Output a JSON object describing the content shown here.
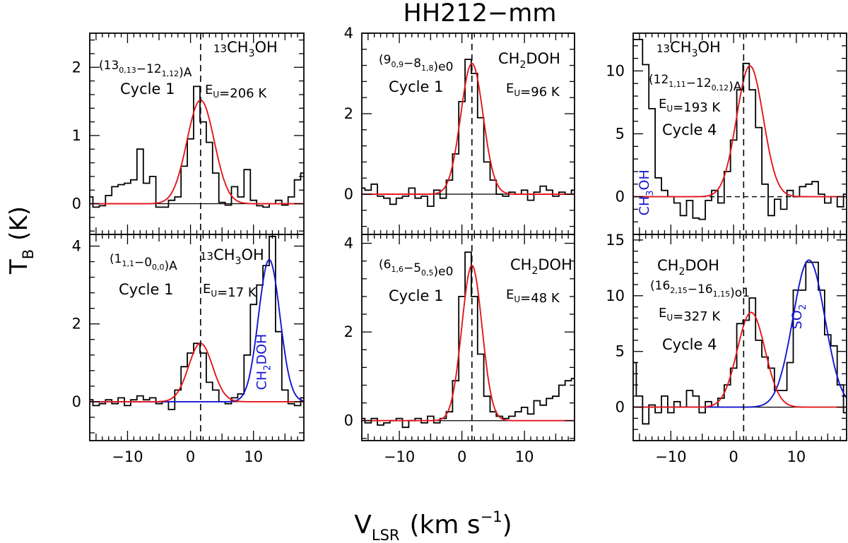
{
  "chart_data": {
    "type": "line",
    "title": "HH212−mm",
    "xlabel": "V",
    "xlabel_sub": "LSR",
    "xlabel_unit": "(km s",
    "xlabel_unit_sup": "−1",
    "xlabel_close": ")",
    "ylabel": "T",
    "ylabel_sub": "B",
    "ylabel_unit": "(K)",
    "xlim": [
      -16,
      18
    ],
    "x_ticks": [
      -10,
      0,
      10
    ],
    "x_tick_labels": [
      "−10",
      "0",
      "10"
    ],
    "line_velocity": 1.6,
    "panels": [
      {
        "id": "p1",
        "molecule_pre": "13",
        "molecule": "CH3OH",
        "transition": "(13_{0,13}−12_{1,12})A",
        "cycle": "Cycle 1",
        "eu": "E_{U}=206 K",
        "ylim": [
          -0.45,
          2.5
        ],
        "yticks": [
          0,
          1,
          2
        ],
        "observed": {
          "x": [
            -16,
            -15,
            -14,
            -13,
            -12,
            -11,
            -10,
            -9,
            -8,
            -7,
            -6,
            -5,
            -4,
            -3,
            -2,
            -1,
            0,
            1,
            2,
            3,
            4,
            5,
            6,
            7,
            8,
            9,
            10,
            11,
            12,
            13,
            14,
            15,
            16,
            17,
            18
          ],
          "y": [
            0.1,
            -0.05,
            -0.03,
            0.12,
            0.25,
            0.28,
            0.3,
            0.35,
            0.8,
            0.3,
            0.4,
            -0.05,
            -0.05,
            0.05,
            0.1,
            0.55,
            0.95,
            1.72,
            1.2,
            0.9,
            0.45,
            0.02,
            -0.02,
            0.25,
            0.1,
            0.5,
            0.05,
            -0.03,
            -0.05,
            0.0,
            0.05,
            -0.02,
            0.1,
            0.35,
            0.45
          ]
        },
        "fits": [
          {
            "color": "#e3171c",
            "amp": 1.52,
            "center": 1.6,
            "fwhm": 5.1
          }
        ],
        "annotations": [],
        "hline_dash": false
      },
      {
        "id": "p2",
        "molecule_pre": "",
        "molecule": "CH2DOH",
        "transition": "(9_{0,9}−8_{1,8})e0",
        "cycle": "Cycle 1",
        "eu": "E_{U}=96 K",
        "ylim": [
          -1.0,
          4.0
        ],
        "yticks": [
          0,
          2,
          4
        ],
        "observed": {
          "x": [
            -16,
            -15,
            -14,
            -13,
            -12,
            -11,
            -10,
            -9,
            -8,
            -7,
            -6,
            -5,
            -4,
            -3,
            -2,
            -1,
            0,
            1,
            2,
            3,
            4,
            5,
            6,
            7,
            8,
            9,
            10,
            11,
            12,
            13,
            14,
            15,
            16,
            17,
            18
          ],
          "y": [
            0.15,
            0.1,
            0.25,
            -0.05,
            -0.1,
            -0.25,
            -0.1,
            -0.05,
            0.15,
            -0.1,
            -0.05,
            -0.3,
            0.1,
            -0.1,
            0.35,
            1.0,
            2.3,
            3.35,
            3.0,
            1.9,
            0.8,
            0.35,
            0.0,
            -0.05,
            0.05,
            0.0,
            0.1,
            -0.15,
            0.05,
            0.2,
            0.1,
            -0.05,
            0.05,
            0.0,
            0.1
          ]
        },
        "fits": [
          {
            "color": "#e3171c",
            "amp": 3.25,
            "center": 1.6,
            "fwhm": 4.2
          }
        ],
        "annotations": [],
        "hline_dash": false
      },
      {
        "id": "p3",
        "molecule_pre": "13",
        "molecule": "CH3OH",
        "transition": "(12_{1,11}−12_{0,12})A",
        "cycle": "Cycle 4",
        "eu": "E_{U}=193 K",
        "ylim": [
          -3.0,
          13.0
        ],
        "yticks": [
          0,
          5,
          10
        ],
        "observed": {
          "x": [
            -16,
            -15,
            -14,
            -13,
            -12,
            -11,
            -10,
            -9,
            -8,
            -7,
            -6,
            -5,
            -4,
            -3,
            -2,
            -1,
            0,
            1,
            2,
            3,
            4,
            5,
            6,
            7,
            8,
            9,
            10,
            11,
            12,
            13,
            14,
            15,
            16,
            17,
            18
          ],
          "y": [
            12.5,
            12.5,
            10.5,
            7.0,
            1.5,
            0.5,
            0.0,
            -0.5,
            -1.5,
            -0.3,
            -1.7,
            -1.8,
            -0.3,
            0.5,
            -0.5,
            2.0,
            4.5,
            8.5,
            10.6,
            8.5,
            5.5,
            1.0,
            -1.5,
            -0.2,
            -1.0,
            0.5,
            0.0,
            0.8,
            1.0,
            1.2,
            0.2,
            -0.5,
            0.0,
            -0.8,
            0.2
          ]
        },
        "fits": [
          {
            "color": "#e3171c",
            "amp": 10.4,
            "center": 2.6,
            "fwhm": 5.0
          }
        ],
        "annotations": [
          {
            "text": "CH3OH",
            "color": "#1515d0",
            "x": -13.5,
            "y": -1.5,
            "rotate": true
          }
        ],
        "hline_dash": true
      },
      {
        "id": "p4",
        "molecule_pre": "13",
        "molecule": "CH3OH",
        "transition": "(1_{1,1}−0_{0,0})A",
        "cycle": "Cycle 1",
        "eu": "E_{U}=17 K",
        "ylim": [
          -1.0,
          4.3
        ],
        "yticks": [
          0,
          2,
          4
        ],
        "observed": {
          "x": [
            -16,
            -15,
            -14,
            -13,
            -12,
            -11,
            -10,
            -9,
            -8,
            -7,
            -6,
            -5,
            -4,
            -3,
            -2,
            -1,
            0,
            1,
            2,
            3,
            4,
            5,
            6,
            7,
            8,
            9,
            10,
            11,
            12,
            13,
            14,
            15,
            16,
            17,
            18
          ],
          "y": [
            0.05,
            -0.1,
            -0.05,
            0.05,
            -0.05,
            0.1,
            -0.1,
            0.05,
            0.15,
            0.05,
            0.1,
            -0.05,
            0.0,
            -0.2,
            0.3,
            0.9,
            1.25,
            1.5,
            1.25,
            0.5,
            0.3,
            0.0,
            -0.05,
            0.1,
            0.2,
            1.2,
            2.5,
            3.0,
            3.5,
            4.25,
            1.8,
            0.3,
            -0.05,
            -0.1,
            0.1
          ]
        },
        "fits": [
          {
            "color": "#1515d0",
            "amp": 3.65,
            "center": 12.5,
            "fwhm": 4.0
          },
          {
            "color": "#e3171c",
            "amp": 1.5,
            "center": 1.6,
            "fwhm": 4.5
          }
        ],
        "annotations": [
          {
            "text": "CH2DOH",
            "color": "#1515d0",
            "x": 12.0,
            "y": 0.3,
            "rotate": true
          }
        ],
        "hline_dash": false
      },
      {
        "id": "p5",
        "molecule_pre": "",
        "molecule": "CH2DOH",
        "transition": "(6_{1,6}−5_{0,5})e0",
        "cycle": "Cycle 1",
        "eu": "E_{U}=48 K",
        "ylim": [
          -0.45,
          4.2
        ],
        "yticks": [
          0,
          2,
          4
        ],
        "observed": {
          "x": [
            -16,
            -15,
            -14,
            -13,
            -12,
            -11,
            -10,
            -9,
            -8,
            -7,
            -6,
            -5,
            -4,
            -3,
            -2,
            -1,
            0,
            1,
            2,
            3,
            4,
            5,
            6,
            7,
            8,
            9,
            10,
            11,
            12,
            13,
            14,
            15,
            16,
            17,
            18
          ],
          "y": [
            0.05,
            -0.05,
            0.05,
            -0.1,
            -0.05,
            0.0,
            0.05,
            -0.15,
            0.0,
            0.05,
            -0.05,
            0.1,
            -0.05,
            0.05,
            0.2,
            0.9,
            2.8,
            3.8,
            2.8,
            1.5,
            0.55,
            0.2,
            0.1,
            0.05,
            0.1,
            0.2,
            0.3,
            0.15,
            0.45,
            0.35,
            0.5,
            0.55,
            0.8,
            0.9,
            0.95
          ]
        },
        "fits": [
          {
            "color": "#e3171c",
            "amp": 3.5,
            "center": 1.6,
            "fwhm": 3.8
          }
        ],
        "annotations": [],
        "hline_dash": false
      },
      {
        "id": "p6",
        "molecule_pre": "",
        "molecule": "CH2DOH",
        "transition": "(16_{2,15}−16_{1,15})o1",
        "cycle": "Cycle 4",
        "eu": "E_{U}=327 K",
        "ylim": [
          -3.0,
          15.5
        ],
        "yticks": [
          0,
          5,
          10,
          15
        ],
        "observed": {
          "x": [
            -16,
            -15,
            -14,
            -13,
            -12,
            -11,
            -10,
            -9,
            -8,
            -7,
            -6,
            -5,
            -4,
            -3,
            -2,
            -1,
            0,
            1,
            2,
            3,
            4,
            5,
            6,
            7,
            8,
            9,
            10,
            11,
            12,
            13,
            14,
            15,
            16,
            17,
            18
          ],
          "y": [
            4.0,
            1.0,
            -1.5,
            0.2,
            -0.5,
            1.0,
            -0.5,
            0.5,
            0.0,
            1.5,
            1.0,
            -0.5,
            0.5,
            0.0,
            0.8,
            2.0,
            3.5,
            7.5,
            7.8,
            9.8,
            6.0,
            4.5,
            3.5,
            1.5,
            1.5,
            4.0,
            10.5,
            10.5,
            13.0,
            13.0,
            10.5,
            6.5,
            5.5,
            2.0,
            -0.5
          ]
        },
        "fits": [
          {
            "color": "#1515d0",
            "amp": 13.2,
            "center": 12.0,
            "fwhm": 6.0
          },
          {
            "color": "#e3171c",
            "amp": 8.5,
            "center": 2.8,
            "fwhm": 5.2
          }
        ],
        "annotations": [
          {
            "text": "SO2",
            "color": "#1515d0",
            "x": 10.8,
            "y": 7.0,
            "rotate": true
          }
        ],
        "hline_dash": false
      }
    ]
  }
}
